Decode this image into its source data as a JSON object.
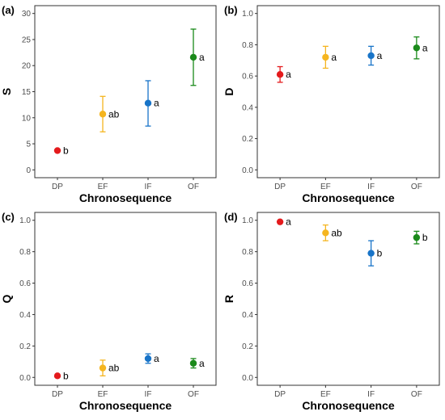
{
  "colors": {
    "DP": "#e41a1c",
    "EF": "#f5b51f",
    "IF": "#1874c8",
    "OF": "#1a8a1a"
  },
  "chart_data": [
    {
      "panel": "(a)",
      "type": "scatter",
      "xlabel": "Chronosequence",
      "ylabel": "S",
      "categories": [
        "DP",
        "EF",
        "IF",
        "OF"
      ],
      "ylim": [
        -1.5,
        31.5
      ],
      "yticks": [
        0,
        5,
        10,
        15,
        20,
        25,
        30
      ],
      "ytick_labels": [
        "0",
        "5",
        "10",
        "15",
        "20",
        "25",
        "30"
      ],
      "grid": false,
      "points": [
        {
          "category": "DP",
          "mean": 3.7,
          "lower": 3.7,
          "upper": 3.7,
          "label": "b"
        },
        {
          "category": "EF",
          "mean": 10.7,
          "lower": 7.3,
          "upper": 14.1,
          "label": "ab"
        },
        {
          "category": "IF",
          "mean": 12.8,
          "lower": 8.4,
          "upper": 17.1,
          "label": "a"
        },
        {
          "category": "OF",
          "mean": 21.6,
          "lower": 16.2,
          "upper": 27.0,
          "label": "a"
        }
      ]
    },
    {
      "panel": "(b)",
      "type": "scatter",
      "xlabel": "Chronosequence",
      "ylabel": "D",
      "categories": [
        "DP",
        "EF",
        "IF",
        "OF"
      ],
      "ylim": [
        -0.05,
        1.05
      ],
      "yticks": [
        0,
        0.2,
        0.4,
        0.6,
        0.8,
        1.0
      ],
      "ytick_labels": [
        "0.0",
        "0.2",
        "0.4",
        "0.6",
        "0.8",
        "1.0"
      ],
      "grid": false,
      "points": [
        {
          "category": "DP",
          "mean": 0.61,
          "lower": 0.56,
          "upper": 0.66,
          "label": "a"
        },
        {
          "category": "EF",
          "mean": 0.72,
          "lower": 0.65,
          "upper": 0.79,
          "label": "a"
        },
        {
          "category": "IF",
          "mean": 0.73,
          "lower": 0.67,
          "upper": 0.79,
          "label": "a"
        },
        {
          "category": "OF",
          "mean": 0.78,
          "lower": 0.71,
          "upper": 0.85,
          "label": "a"
        }
      ]
    },
    {
      "panel": "(c)",
      "type": "scatter",
      "xlabel": "Chronosequence",
      "ylabel": "Q",
      "categories": [
        "DP",
        "EF",
        "IF",
        "OF"
      ],
      "ylim": [
        -0.05,
        1.05
      ],
      "yticks": [
        0,
        0.2,
        0.4,
        0.6,
        0.8,
        1.0
      ],
      "ytick_labels": [
        "0.0",
        "0.2",
        "0.4",
        "0.6",
        "0.8",
        "1.0"
      ],
      "grid": false,
      "points": [
        {
          "category": "DP",
          "mean": 0.01,
          "lower": 0.01,
          "upper": 0.01,
          "label": "b"
        },
        {
          "category": "EF",
          "mean": 0.06,
          "lower": 0.01,
          "upper": 0.11,
          "label": "ab"
        },
        {
          "category": "IF",
          "mean": 0.12,
          "lower": 0.09,
          "upper": 0.15,
          "label": "a"
        },
        {
          "category": "OF",
          "mean": 0.09,
          "lower": 0.06,
          "upper": 0.12,
          "label": "a"
        }
      ]
    },
    {
      "panel": "(d)",
      "type": "scatter",
      "xlabel": "Chronosequence",
      "ylabel": "R",
      "categories": [
        "DP",
        "EF",
        "IF",
        "OF"
      ],
      "ylim": [
        -0.05,
        1.05
      ],
      "yticks": [
        0,
        0.2,
        0.4,
        0.6,
        0.8,
        1.0
      ],
      "ytick_labels": [
        "0.0",
        "0.2",
        "0.4",
        "0.6",
        "0.8",
        "1.0"
      ],
      "grid": false,
      "points": [
        {
          "category": "DP",
          "mean": 0.99,
          "lower": 0.99,
          "upper": 0.99,
          "label": "a"
        },
        {
          "category": "EF",
          "mean": 0.92,
          "lower": 0.87,
          "upper": 0.97,
          "label": "ab"
        },
        {
          "category": "IF",
          "mean": 0.79,
          "lower": 0.71,
          "upper": 0.87,
          "label": "b"
        },
        {
          "category": "OF",
          "mean": 0.89,
          "lower": 0.85,
          "upper": 0.93,
          "label": "b"
        }
      ]
    }
  ]
}
